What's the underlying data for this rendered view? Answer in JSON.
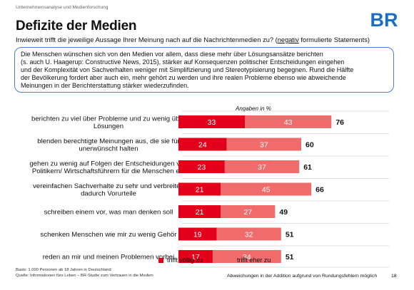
{
  "header": {
    "small_title": "Unternehmensanalyse und Medienforschung",
    "title": "Defizite der Medien",
    "subtitle_pre": "Inwieweit trifft die jeweilige Aussage Ihrer Meinung nach auf die Nachrichtenmedien zu? (",
    "subtitle_underlined": "negativ",
    "subtitle_post": " formulierte Statements)"
  },
  "logo": {
    "text": "BR",
    "color": "#1a6fc4"
  },
  "info_box": {
    "lines": [
      "Die Menschen wünschen sich von den Medien vor allem, dass diese mehr über Lösungsansätze berichten",
      "(s. auch U. Haagerup: Constructive News, 2015), stärker auf Konsequenzen politischer Entscheidungen eingehen",
      "und der Komplexität von Sachverhalten weniger mit Simplifizierung und Stereotypisierung begegnen. Rund die Hälfte",
      "der Bevölkerung fordert aber auch ein, mehr gehört zu werden und ihre realen Probleme ebenso wie abweichende",
      "Meinungen in der Berichterstattung stärker wiederzufinden."
    ]
  },
  "chart_data": {
    "type": "bar",
    "orientation": "horizontal",
    "stacked": true,
    "unit_label": "Angaben in %",
    "categories": [
      [
        "berichten zu viel über Probleme und zu wenig über",
        "Lösungen"
      ],
      [
        "blenden berechtigte Meinungen aus, die sie für",
        "unerwünscht halten"
      ],
      [
        "gehen zu wenig auf Folgen der Entscheidungen von",
        "Politikern/ Wirtschaftsführern für die Menschen ein"
      ],
      [
        "vereinfachen Sachverhalte zu sehr und verbreiten",
        "dadurch Vorurteile"
      ],
      [
        "schreiben einem vor, was man denken soll"
      ],
      [
        "schenken Menschen wie mir zu wenig Gehör"
      ],
      [
        "reden an mir und meinen Problemen vorbei"
      ]
    ],
    "series": [
      {
        "name": "trifft völlig zu",
        "color": "#e3001b",
        "values": [
          33,
          24,
          23,
          21,
          21,
          19,
          17
        ]
      },
      {
        "name": "trifft eher zu",
        "color": "#f06c6c",
        "values": [
          43,
          37,
          37,
          45,
          27,
          32,
          34
        ]
      }
    ],
    "totals": [
      76,
      60,
      61,
      66,
      49,
      51,
      51
    ],
    "xlim": [
      0,
      80
    ],
    "grid": false,
    "legend_position": "bottom"
  },
  "footer": {
    "left_lines": [
      "Basis: 1.000 Personen ab 18 Jahren in Deutschland",
      "Quelle: Informationen fürs Leben – BR-Studie zum Vertrauen in die Medien"
    ],
    "right_note": "Abweichungen in der Addition aufgrund von Rundungsfehlern möglich",
    "page_number": "18"
  }
}
